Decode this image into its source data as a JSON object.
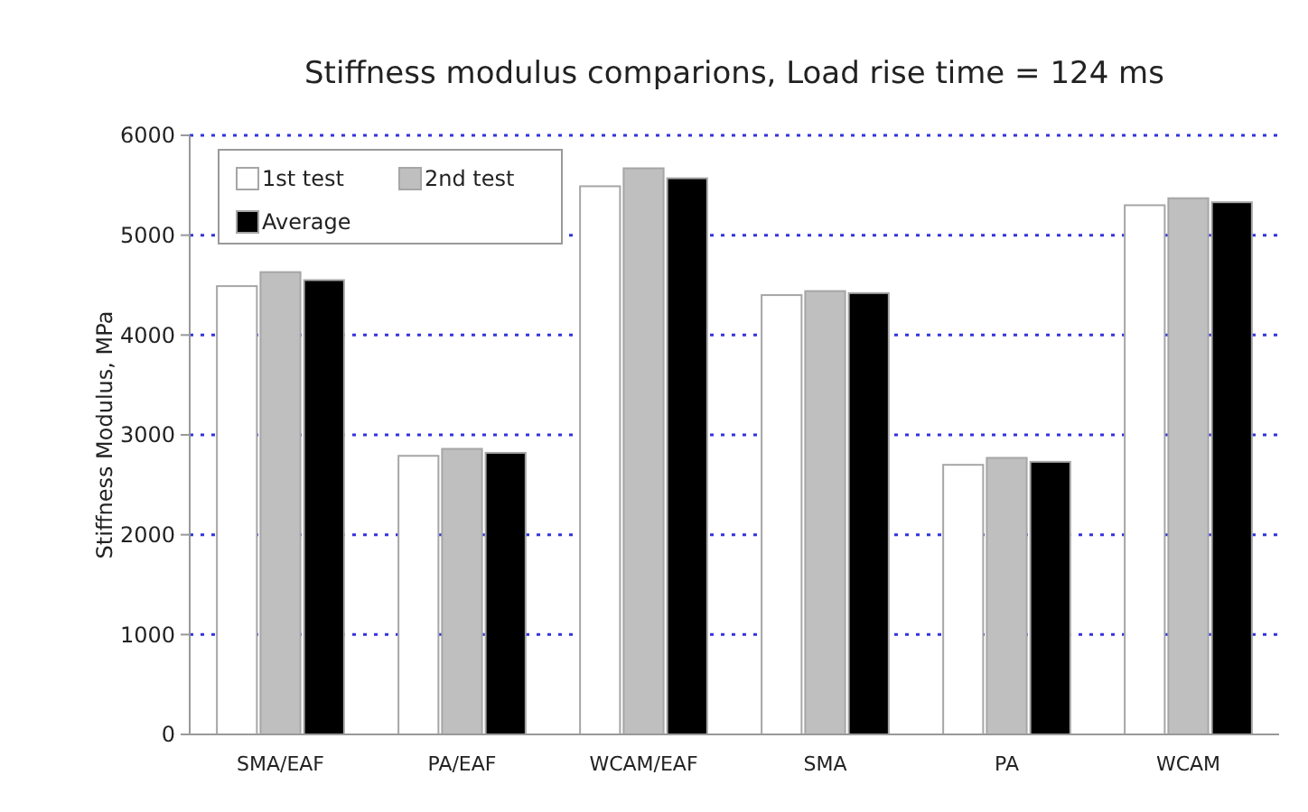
{
  "chart_data": {
    "type": "bar",
    "title": "Stiffness modulus comparions, Load rise time = 124 ms",
    "ylabel": "Stiffness Modulus, MPa",
    "categories": [
      "SMA/EAF",
      "PA/EAF",
      "WCAM/EAF",
      "SMA",
      "PA",
      "WCAM"
    ],
    "series": [
      {
        "name": "1st test",
        "color": "#ffffff",
        "values": [
          4490,
          2790,
          5490,
          4400,
          2700,
          5300
        ]
      },
      {
        "name": "2nd test",
        "color": "#bfbfbf",
        "values": [
          4630,
          2860,
          5670,
          4440,
          2770,
          5370
        ]
      },
      {
        "name": "Average",
        "color": "#000000",
        "values": [
          4550,
          2820,
          5570,
          4420,
          2730,
          5330
        ]
      }
    ],
    "ylim": [
      0,
      6000
    ],
    "yticks": [
      0,
      1000,
      2000,
      3000,
      4000,
      5000,
      6000
    ],
    "grid": "y",
    "legend": "top left"
  }
}
